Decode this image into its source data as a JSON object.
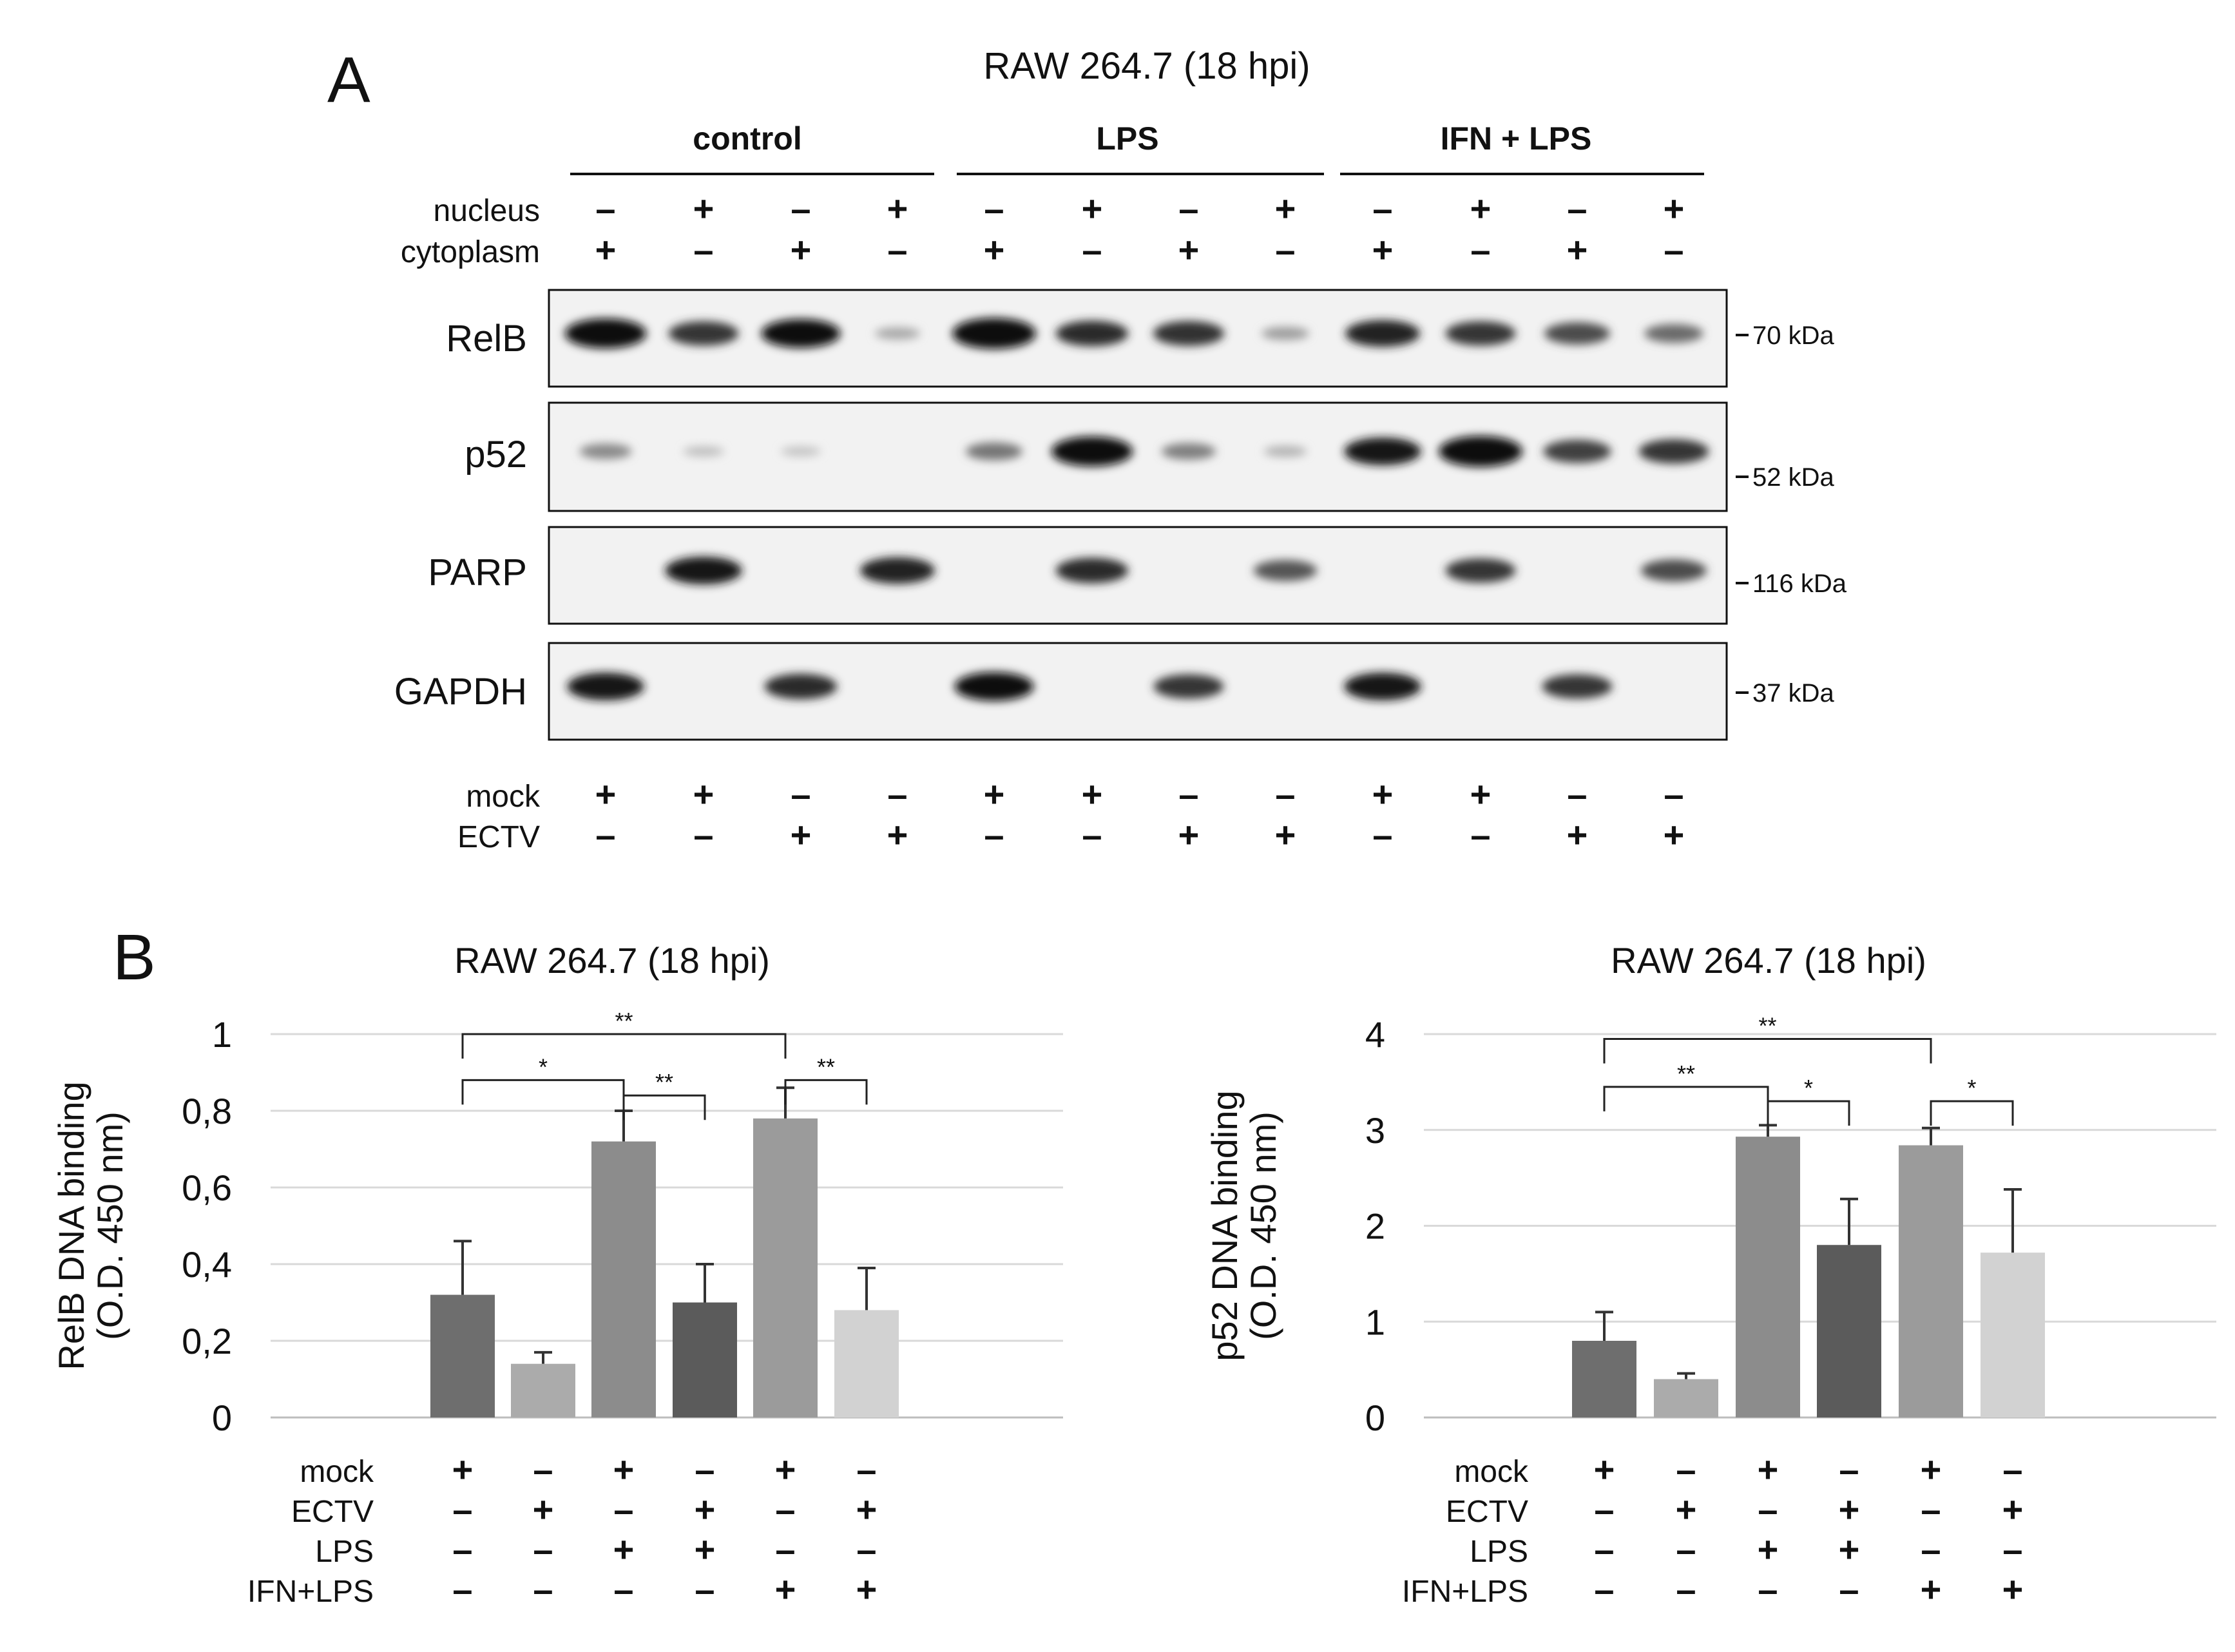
{
  "panel_a": {
    "label": "A",
    "title": "RAW 264.7 (18 hpi)",
    "groups": [
      "control",
      "LPS",
      "IFN + LPS"
    ],
    "fraction_rows": [
      {
        "label": "nucleus",
        "signs": [
          "–",
          "+",
          "–",
          "+",
          "–",
          "+",
          "–",
          "+",
          "–",
          "+",
          "–",
          "+"
        ]
      },
      {
        "label": "cytoplasm",
        "signs": [
          "+",
          "–",
          "+",
          "–",
          "+",
          "–",
          "+",
          "–",
          "+",
          "–",
          "+",
          "–"
        ]
      }
    ],
    "treatment_rows": [
      {
        "label": "mock",
        "signs": [
          "+",
          "+",
          "–",
          "–",
          "+",
          "+",
          "–",
          "–",
          "+",
          "+",
          "–",
          "–"
        ]
      },
      {
        "label": "ECTV",
        "signs": [
          "–",
          "–",
          "+",
          "+",
          "–",
          "–",
          "+",
          "+",
          "–",
          "–",
          "+",
          "+"
        ]
      }
    ],
    "blots": [
      {
        "name": "RelB",
        "marker": "70 kDa",
        "bands": [
          0.95,
          0.7,
          0.9,
          0.15,
          1.0,
          0.75,
          0.72,
          0.2,
          0.8,
          0.7,
          0.6,
          0.45
        ]
      },
      {
        "name": "p52",
        "marker": "52 kDa",
        "bands": [
          0.3,
          0.05,
          0.03,
          0.0,
          0.4,
          0.95,
          0.35,
          0.1,
          0.85,
          1.0,
          0.65,
          0.7
        ]
      },
      {
        "name": "PARP",
        "marker": "116 kDa",
        "bands": [
          0.0,
          0.85,
          0.0,
          0.8,
          0.0,
          0.75,
          0.0,
          0.55,
          0.0,
          0.7,
          0.0,
          0.6
        ]
      },
      {
        "name": "GAPDH",
        "marker": "37 kDa",
        "bands": [
          0.85,
          0.0,
          0.75,
          0.0,
          0.9,
          0.0,
          0.7,
          0.0,
          0.85,
          0.0,
          0.7,
          0.0
        ]
      }
    ]
  },
  "panel_b": {
    "label": "B",
    "condition_labels": [
      "mock",
      "ECTV",
      "LPS",
      "IFN+LPS"
    ],
    "condition_signs": [
      [
        "+",
        "–",
        "+",
        "–",
        "+",
        "–"
      ],
      [
        "–",
        "+",
        "–",
        "+",
        "–",
        "+"
      ],
      [
        "–",
        "–",
        "+",
        "+",
        "–",
        "–"
      ],
      [
        "–",
        "–",
        "–",
        "–",
        "+",
        "+"
      ]
    ]
  },
  "chart_data": [
    {
      "type": "bar",
      "title": "RAW 264.7 (18 hpi)",
      "ylabel_line1": "RelB DNA binding",
      "ylabel_line2": "(O.D. 450 nm)",
      "ylim": [
        0,
        1
      ],
      "yticks": [
        0,
        0.2,
        0.4,
        0.6,
        0.8,
        1
      ],
      "ytick_labels": [
        "0",
        "0,2",
        "0,4",
        "0,6",
        "0,8",
        "1"
      ],
      "grid": true,
      "values": [
        0.32,
        0.14,
        0.72,
        0.3,
        0.78,
        0.28
      ],
      "errors": [
        0.14,
        0.03,
        0.08,
        0.1,
        0.08,
        0.11
      ],
      "colors": [
        "#6e6e6e",
        "#ababab",
        "#8c8c8c",
        "#5b5b5b",
        "#9b9b9b",
        "#d2d2d2"
      ],
      "significance": [
        {
          "from": 0,
          "to": 4,
          "label": "**",
          "y": 1.0
        },
        {
          "from": 0,
          "to": 2,
          "label": "*",
          "y": 0.88
        },
        {
          "from": 2,
          "to": 3,
          "label": "**",
          "y": 0.84
        },
        {
          "from": 4,
          "to": 5,
          "label": "**",
          "y": 0.88
        }
      ]
    },
    {
      "type": "bar",
      "title": "RAW 264.7 (18 hpi)",
      "ylabel_line1": "p52 DNA binding",
      "ylabel_line2": "(O.D. 450 nm)",
      "ylim": [
        0,
        4
      ],
      "yticks": [
        0,
        1,
        2,
        3,
        4
      ],
      "ytick_labels": [
        "0",
        "1",
        "2",
        "3",
        "4"
      ],
      "grid": true,
      "values": [
        0.8,
        0.4,
        2.93,
        1.8,
        2.84,
        1.72
      ],
      "errors": [
        0.3,
        0.06,
        0.12,
        0.48,
        0.18,
        0.66
      ],
      "colors": [
        "#6e6e6e",
        "#ababab",
        "#8c8c8c",
        "#5b5b5b",
        "#9b9b9b",
        "#d2d2d2"
      ],
      "significance": [
        {
          "from": 0,
          "to": 4,
          "label": "**",
          "y": 3.95
        },
        {
          "from": 0,
          "to": 2,
          "label": "**",
          "y": 3.45
        },
        {
          "from": 2,
          "to": 3,
          "label": "*",
          "y": 3.3
        },
        {
          "from": 4,
          "to": 5,
          "label": "*",
          "y": 3.3
        }
      ]
    }
  ]
}
